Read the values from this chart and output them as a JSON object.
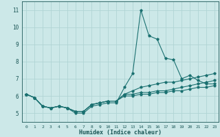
{
  "xlabel": "Humidex (Indice chaleur)",
  "bg_color": "#cce8e8",
  "grid_color": "#b0d4d4",
  "line_color": "#1a7070",
  "text_color": "#1a5555",
  "xlim": [
    -0.5,
    23.5
  ],
  "ylim": [
    4.5,
    11.5
  ],
  "xticks": [
    0,
    1,
    2,
    3,
    4,
    5,
    6,
    7,
    8,
    9,
    10,
    11,
    12,
    13,
    14,
    15,
    16,
    17,
    18,
    19,
    20,
    21,
    22,
    23
  ],
  "yticks": [
    5,
    6,
    7,
    8,
    9,
    10,
    11
  ],
  "series": [
    [
      6.1,
      5.9,
      5.4,
      5.3,
      5.4,
      5.3,
      5.0,
      5.0,
      5.4,
      5.5,
      5.6,
      5.6,
      6.5,
      7.3,
      11.0,
      9.5,
      9.3,
      8.2,
      8.1,
      7.0,
      7.2,
      6.9,
      6.7,
      6.7
    ],
    [
      6.1,
      5.9,
      5.4,
      5.3,
      5.4,
      5.3,
      5.1,
      5.1,
      5.5,
      5.6,
      5.7,
      5.7,
      6.1,
      6.3,
      6.5,
      6.6,
      6.7,
      6.8,
      6.8,
      6.9,
      7.0,
      7.1,
      7.2,
      7.3
    ],
    [
      6.1,
      5.9,
      5.4,
      5.3,
      5.4,
      5.3,
      5.1,
      5.1,
      5.5,
      5.6,
      5.7,
      5.7,
      6.1,
      6.1,
      6.2,
      6.2,
      6.3,
      6.3,
      6.4,
      6.5,
      6.6,
      6.7,
      6.8,
      6.9
    ],
    [
      6.1,
      5.9,
      5.4,
      5.3,
      5.4,
      5.3,
      5.1,
      5.1,
      5.5,
      5.6,
      5.7,
      5.7,
      6.0,
      6.0,
      6.1,
      6.1,
      6.2,
      6.2,
      6.3,
      6.3,
      6.4,
      6.5,
      6.5,
      6.6
    ]
  ]
}
